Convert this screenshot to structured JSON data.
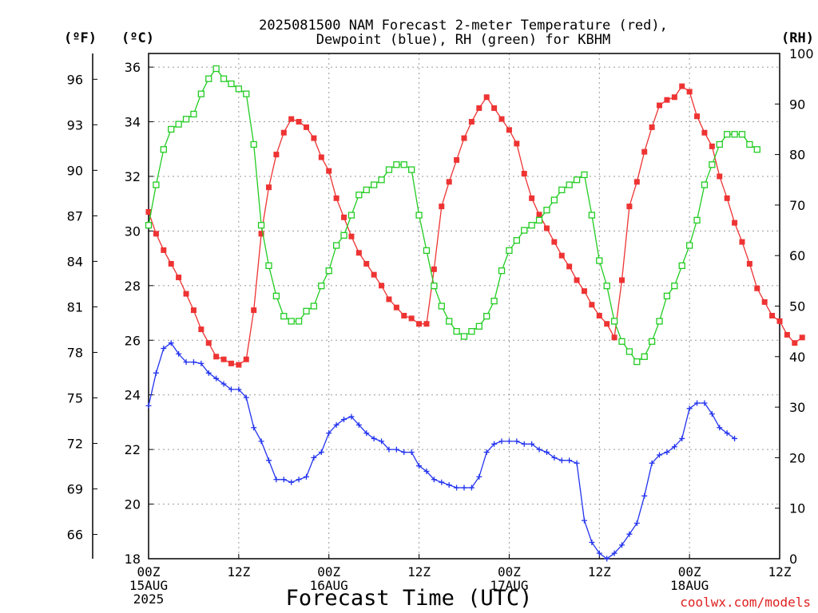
{
  "title_line1": "2025081500 NAM Forecast 2-meter Temperature (red),",
  "title_line2": "Dewpoint (blue), RH (green) for KBHM",
  "credit": "coolwx.com/models",
  "chart_data": {
    "type": "line",
    "title": "2025081500 NAM Forecast 2-meter Temperature (red), Dewpoint (blue), RH (green) for KBHM",
    "xlabel": "Forecast Time (UTC)",
    "x_hours_range": [
      0,
      84
    ],
    "x_ticks": [
      {
        "hour": 0,
        "lines": [
          "00Z",
          "15AUG",
          "2025"
        ]
      },
      {
        "hour": 12,
        "lines": [
          "12Z"
        ]
      },
      {
        "hour": 24,
        "lines": [
          "00Z",
          "16AUG"
        ]
      },
      {
        "hour": 36,
        "lines": [
          "12Z"
        ]
      },
      {
        "hour": 48,
        "lines": [
          "00Z",
          "17AUG"
        ]
      },
      {
        "hour": 60,
        "lines": [
          "12Z"
        ]
      },
      {
        "hour": 72,
        "lines": [
          "00Z",
          "18AUG"
        ]
      },
      {
        "hour": 84,
        "lines": [
          "12Z"
        ]
      }
    ],
    "grid": true,
    "axes": {
      "left_c": {
        "label": "(ºC)",
        "range": [
          18,
          36.5
        ],
        "ticks": [
          18,
          20,
          22,
          24,
          26,
          28,
          30,
          32,
          34,
          36
        ]
      },
      "left_f": {
        "label": "(ºF)",
        "ticks": [
          66,
          69,
          72,
          75,
          78,
          81,
          84,
          87,
          90,
          93,
          96
        ]
      },
      "right_rh": {
        "label": "(RH)",
        "range": [
          0,
          100
        ],
        "ticks": [
          0,
          10,
          20,
          30,
          40,
          50,
          60,
          70,
          80,
          90,
          100
        ]
      }
    },
    "series": [
      {
        "key": "temperature",
        "color": "#ee3333",
        "marker": "filled-square",
        "axis": "left_c",
        "hour_step": 1,
        "values": [
          30.7,
          29.9,
          29.3,
          28.8,
          28.3,
          27.7,
          27.1,
          26.4,
          25.9,
          25.4,
          25.3,
          25.15,
          25.1,
          25.3,
          27.1,
          29.9,
          31.6,
          32.8,
          33.6,
          34.1,
          34.0,
          33.8,
          33.4,
          32.7,
          32.2,
          31.2,
          30.5,
          29.8,
          29.2,
          28.8,
          28.4,
          28.0,
          27.5,
          27.2,
          26.9,
          26.8,
          26.6,
          26.6,
          28.6,
          30.9,
          31.8,
          32.6,
          33.4,
          34.0,
          34.5,
          34.9,
          34.5,
          34.1,
          33.7,
          33.2,
          32.1,
          31.2,
          30.6,
          30.1,
          29.6,
          29.1,
          28.7,
          28.2,
          27.8,
          27.3,
          26.9,
          26.6,
          26.1,
          28.2,
          30.9,
          31.8,
          32.9,
          33.8,
          34.6,
          34.8,
          34.9,
          35.3,
          35.1,
          34.2,
          33.6,
          33.1,
          32.0,
          31.2,
          30.3,
          29.6,
          28.8,
          27.9,
          27.4,
          26.9,
          26.7,
          26.2,
          25.9,
          26.1
        ]
      },
      {
        "key": "dewpoint",
        "color": "#2233ee",
        "marker": "plus",
        "axis": "left_c",
        "hour_step": 1,
        "values": [
          23.6,
          24.8,
          25.7,
          25.9,
          25.5,
          25.2,
          25.2,
          25.15,
          24.8,
          24.6,
          24.4,
          24.2,
          24.2,
          23.9,
          22.8,
          22.3,
          21.6,
          20.9,
          20.9,
          20.8,
          20.9,
          21.0,
          21.7,
          21.9,
          22.6,
          22.9,
          23.1,
          23.2,
          22.9,
          22.6,
          22.4,
          22.3,
          22.0,
          22.0,
          21.9,
          21.9,
          21.4,
          21.2,
          20.9,
          20.8,
          20.7,
          20.6,
          20.6,
          20.6,
          21.0,
          21.9,
          22.2,
          22.3,
          22.3,
          22.3,
          22.2,
          22.2,
          22.0,
          21.9,
          21.7,
          21.6,
          21.6,
          21.5,
          19.4,
          18.6,
          18.2,
          18.0,
          18.2,
          18.5,
          18.9,
          19.3,
          20.3,
          21.5,
          21.8,
          21.9,
          22.1,
          22.4,
          23.5,
          23.7,
          23.7,
          23.3,
          22.8,
          22.6,
          22.4
        ]
      },
      {
        "key": "rh",
        "color": "#22cc22",
        "marker": "open-square",
        "axis": "right_rh",
        "hour_step": 1,
        "values": [
          66,
          74,
          81,
          85,
          86,
          87,
          88,
          92,
          95,
          97,
          95,
          94,
          93,
          92,
          82,
          66,
          58,
          52,
          48,
          47,
          47,
          49,
          50,
          54,
          57,
          62,
          64,
          68,
          72,
          73,
          74,
          75,
          77,
          78,
          78,
          77,
          68,
          61,
          54,
          50,
          47,
          45,
          44,
          45,
          46,
          48,
          51,
          57,
          61,
          63,
          65,
          66,
          67,
          69,
          71,
          73,
          74,
          75,
          76,
          68,
          59,
          54,
          47,
          43,
          41,
          39,
          40,
          43,
          47,
          52,
          54,
          58,
          62,
          67,
          74,
          78,
          82,
          84,
          84,
          84,
          82,
          81
        ]
      }
    ]
  }
}
